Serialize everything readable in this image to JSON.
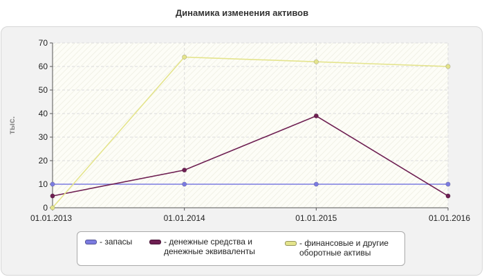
{
  "chart_data": {
    "type": "line",
    "title": "Динамика изменения активов",
    "ylabel": "тыс.",
    "xlabel": "",
    "x": [
      "01.01.2013",
      "01.01.2014",
      "01.01.2015",
      "01.01.2016"
    ],
    "ylim": [
      0,
      70
    ],
    "yticks": [
      0,
      10,
      20,
      30,
      40,
      50,
      60,
      70
    ],
    "grid": true,
    "legend_position": "bottom",
    "series": [
      {
        "name": "- запасы",
        "legend_text": "- запасы",
        "color": "#7b7be0",
        "values": [
          10,
          10,
          10,
          10
        ]
      },
      {
        "name": "- денежные средства и денежные эквиваленты",
        "legend_text": "- денежные средства и\nденежные эквиваленты",
        "color": "#6e1f52",
        "values": [
          5,
          16,
          39,
          5
        ]
      },
      {
        "name": "- финансовые и другие оборотные активы",
        "legend_text": "- финансовые и другие\nоборотные активы",
        "color": "#e4e48c",
        "values": [
          0,
          64,
          62,
          60
        ]
      }
    ]
  }
}
